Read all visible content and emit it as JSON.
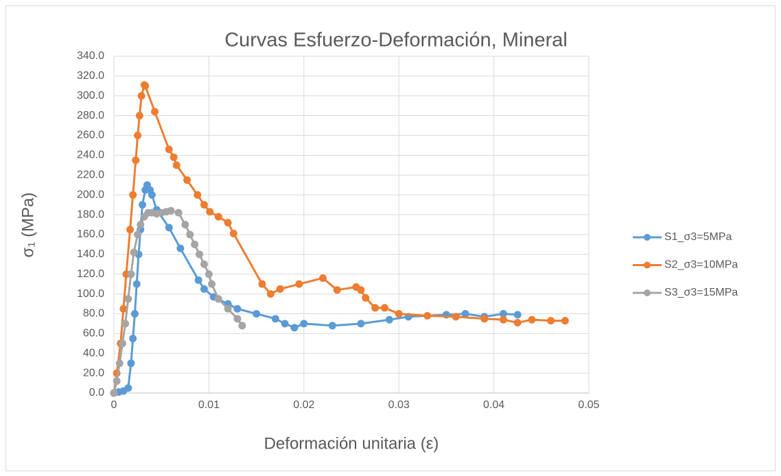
{
  "chart_data": {
    "type": "scatter",
    "title": "Curvas Esfuerzo-Deformación, Mineral",
    "x_label": "Deformación unitaria (ε)",
    "y_label": "σ₁ (MPa)",
    "xlim": [
      0,
      0.05
    ],
    "xticks": [
      0,
      0.01,
      0.02,
      0.03,
      0.04,
      0.05
    ],
    "ylim": [
      0,
      340
    ],
    "yticks": [
      {
        "value": 0,
        "label": "0.0"
      },
      {
        "value": 20,
        "label": "20.0"
      },
      {
        "value": 40,
        "label": "40.0"
      },
      {
        "value": 60,
        "label": "60.0"
      },
      {
        "value": 80,
        "label": "80.0"
      },
      {
        "value": 100,
        "label": "100.0"
      },
      {
        "value": 120,
        "label": "120.0"
      },
      {
        "value": 140,
        "label": "140.0"
      },
      {
        "value": 160,
        "label": "160.0"
      },
      {
        "value": 180,
        "label": "180.0"
      },
      {
        "value": 200,
        "label": "200.0"
      },
      {
        "value": 220,
        "label": "220.0"
      },
      {
        "value": 240,
        "label": "240.0"
      },
      {
        "value": 260,
        "label": "260.0"
      },
      {
        "value": 280,
        "label": "280.0"
      },
      {
        "value": 300,
        "label": "300.0"
      },
      {
        "value": 320,
        "label": "320.0"
      },
      {
        "value": 340,
        "label": "340.0"
      }
    ],
    "grid": true,
    "legend": "right",
    "series": [
      {
        "name": "S1_σ3=5MPa",
        "color": "#5b9bd5",
        "x": [
          0,
          0.0005,
          0.001,
          0.0015,
          0.0018,
          0.002,
          0.0022,
          0.0024,
          0.0026,
          0.0028,
          0.003,
          0.0033,
          0.0035,
          0.0038,
          0.004,
          0.0045,
          0.0058,
          0.007,
          0.0089,
          0.0095,
          0.0105,
          0.012,
          0.013,
          0.015,
          0.017,
          0.018,
          0.019,
          0.02,
          0.023,
          0.026,
          0.029,
          0.031,
          0.035,
          0.037,
          0.039,
          0.041,
          0.0425
        ],
        "values": [
          0,
          1,
          2,
          5,
          30,
          55,
          80,
          110,
          140,
          165,
          190,
          205,
          210,
          205,
          200,
          185,
          167,
          146,
          114,
          105,
          97,
          90,
          85,
          80,
          75,
          70,
          66,
          70,
          68,
          70,
          74,
          77,
          79,
          80,
          77,
          80,
          79
        ]
      },
      {
        "name": "S2_σ3=10MPa",
        "color": "#ed7d31",
        "x": [
          0,
          0.0003,
          0.0007,
          0.001,
          0.0013,
          0.0017,
          0.002,
          0.0023,
          0.0025,
          0.0027,
          0.0029,
          0.0032,
          0.0033,
          0.0043,
          0.0058,
          0.0063,
          0.0066,
          0.0077,
          0.0088,
          0.0095,
          0.0101,
          0.011,
          0.012,
          0.0126,
          0.0156,
          0.0165,
          0.0175,
          0.0195,
          0.022,
          0.0235,
          0.0255,
          0.026,
          0.0265,
          0.0275,
          0.0285,
          0.03,
          0.033,
          0.036,
          0.039,
          0.041,
          0.0425,
          0.044,
          0.046,
          0.0475
        ],
        "values": [
          0,
          20,
          50,
          85,
          120,
          165,
          200,
          235,
          260,
          280,
          300,
          311,
          310,
          284,
          246,
          238,
          230,
          215,
          200,
          190,
          183,
          178,
          172,
          161,
          110,
          100,
          105,
          110,
          116,
          104,
          107,
          104,
          96,
          86,
          86,
          80,
          78,
          77,
          75,
          74,
          71,
          74,
          73,
          73
        ]
      },
      {
        "name": "S3_σ3=15MPa",
        "color": "#a5a5a5",
        "x": [
          0,
          0.0003,
          0.0006,
          0.0009,
          0.0012,
          0.0015,
          0.0018,
          0.0021,
          0.0025,
          0.0028,
          0.0032,
          0.0036,
          0.004,
          0.0045,
          0.005,
          0.0055,
          0.006,
          0.0068,
          0.0075,
          0.008,
          0.0085,
          0.009,
          0.0095,
          0.01,
          0.0103,
          0.011,
          0.012,
          0.013,
          0.0135
        ],
        "values": [
          0,
          12,
          30,
          50,
          70,
          95,
          120,
          142,
          160,
          170,
          178,
          182,
          182,
          181,
          182,
          183,
          184,
          182,
          170,
          160,
          150,
          140,
          130,
          120,
          110,
          95,
          85,
          75,
          68
        ]
      }
    ]
  }
}
